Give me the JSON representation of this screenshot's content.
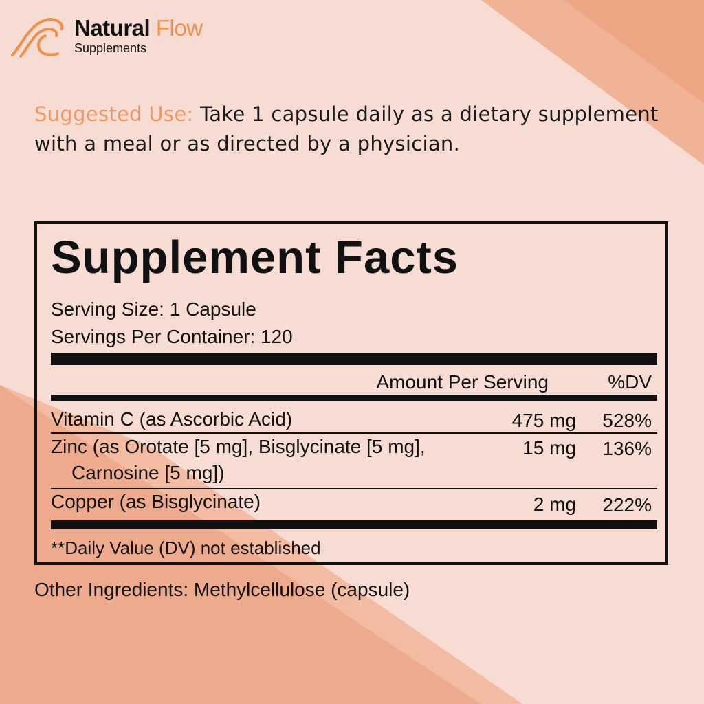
{
  "brand": {
    "name": "Natural",
    "name_accent": "Flow",
    "subtitle": "Supplements",
    "accent_color": "#f0904a",
    "logo_icon": "wave-icon"
  },
  "suggested_use": {
    "label": "Suggested Use:",
    "text": " Take 1 capsule daily as a dietary supplement",
    "text2": "with a meal or as directed by a physician."
  },
  "facts": {
    "title": "Supplement Facts",
    "serving_size": "Serving Size: 1 Capsule",
    "servings_per_container": "Servings Per Container: 120",
    "col_amount": "Amount Per Serving",
    "col_dv": "%DV",
    "rows": [
      {
        "name": "Vitamin C (as Ascorbic Acid)",
        "amount": "475 mg",
        "dv": "528%"
      },
      {
        "name": "Zinc (as Orotate [5 mg], Bisglycinate [5 mg],",
        "name2": "Carnosine [5 mg])",
        "amount": "15 mg",
        "dv": "136%"
      },
      {
        "name": "Copper (as Bisglycinate)",
        "amount": "2 mg",
        "dv": "222%"
      }
    ],
    "footnote": "**Daily Value (DV) not established"
  },
  "other_ingredients": "Other Ingredients: Methylcellulose (capsule)"
}
